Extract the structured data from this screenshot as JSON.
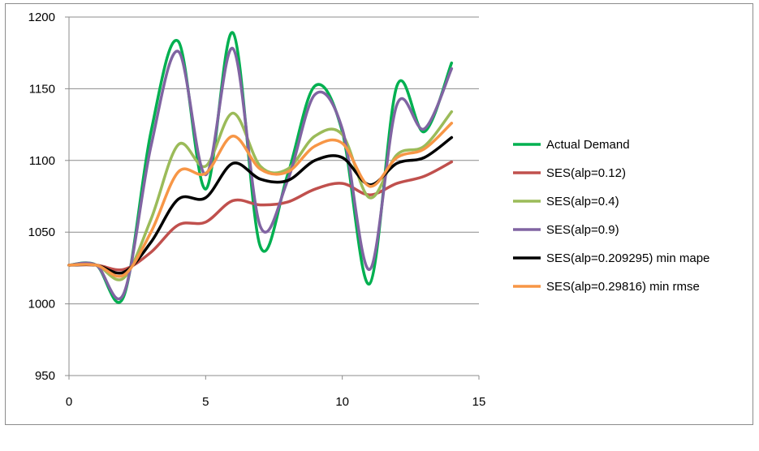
{
  "chart_data": {
    "type": "line",
    "title": "",
    "xlabel": "",
    "ylabel": "",
    "xlim": [
      0,
      15
    ],
    "ylim": [
      950,
      1200
    ],
    "x_ticks": [
      0,
      5,
      10,
      15
    ],
    "y_ticks": [
      950,
      1000,
      1050,
      1100,
      1150,
      1200
    ],
    "grid": "horizontal",
    "legend_position": "right",
    "series": [
      {
        "name": "Actual  Demand",
        "color": "#00b050",
        "x": [
          0,
          1,
          2,
          3,
          4,
          5,
          6,
          7,
          8,
          9,
          10,
          11,
          12,
          13,
          14
        ],
        "y": [
          1027,
          1027,
          1005,
          1120,
          1183,
          1080,
          1189,
          1040,
          1090,
          1152,
          1120,
          1014,
          1152,
          1120,
          1168
        ]
      },
      {
        "name": "SES(alp=0.12)",
        "color": "#c0504d",
        "x": [
          0,
          1,
          2,
          3,
          4,
          5,
          6,
          7,
          8,
          9,
          10,
          11,
          12,
          13,
          14
        ],
        "y": [
          1027,
          1027,
          1024,
          1036,
          1055,
          1057,
          1072,
          1069,
          1071,
          1080,
          1084,
          1076,
          1084,
          1089,
          1099
        ]
      },
      {
        "name": "SES(alp=0.4)",
        "color": "#9bbb59",
        "x": [
          0,
          1,
          2,
          3,
          4,
          5,
          6,
          7,
          8,
          9,
          10,
          11,
          12,
          13,
          14
        ],
        "y": [
          1027,
          1027,
          1018,
          1059,
          1111,
          1096,
          1133,
          1096,
          1094,
          1117,
          1118,
          1074,
          1104,
          1110,
          1134
        ]
      },
      {
        "name": "SES(alp=0.9)",
        "color": "#8064a2",
        "x": [
          0,
          1,
          2,
          3,
          4,
          5,
          6,
          7,
          8,
          9,
          10,
          11,
          12,
          13,
          14
        ],
        "y": [
          1027,
          1027,
          1007,
          1110,
          1176,
          1090,
          1178,
          1054,
          1086,
          1146,
          1122,
          1024,
          1139,
          1122,
          1164
        ]
      },
      {
        "name": "SES(alp=0.209295) min mape",
        "color": "#000000",
        "x": [
          0,
          1,
          2,
          3,
          4,
          5,
          6,
          7,
          8,
          9,
          10,
          11,
          12,
          13,
          14
        ],
        "y": [
          1027,
          1027,
          1022,
          1043,
          1073,
          1074,
          1098,
          1087,
          1086,
          1100,
          1102,
          1083,
          1098,
          1102,
          1116
        ]
      },
      {
        "name": "SES(alp=0.29816) min rmse",
        "color": "#f79646",
        "x": [
          0,
          1,
          2,
          3,
          4,
          5,
          6,
          7,
          8,
          9,
          10,
          11,
          12,
          13,
          14
        ],
        "y": [
          1027,
          1027,
          1020,
          1050,
          1092,
          1091,
          1117,
          1094,
          1092,
          1110,
          1112,
          1082,
          1102,
          1108,
          1126
        ]
      }
    ]
  }
}
